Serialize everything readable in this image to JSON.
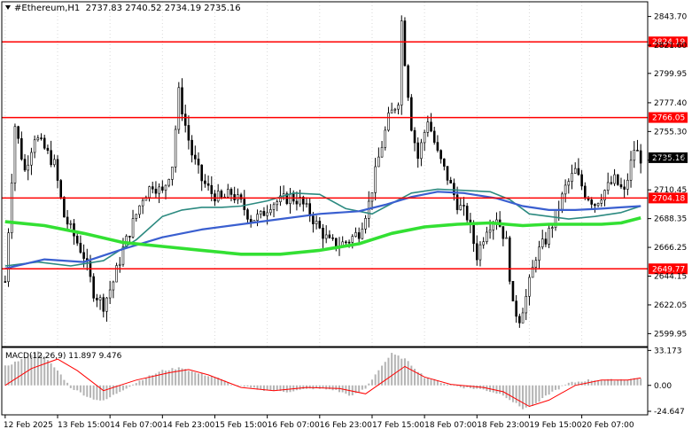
{
  "header": {
    "symbol": "#Ethereum,H1",
    "ohlc": "2737.83 2740.52 2734.19 2735.16"
  },
  "macd_label": "MACD(12,26,9) 11.897 9.476",
  "colors": {
    "candle": "#000000",
    "level_line": "#ff0000",
    "level_tag": "#ff0000",
    "price_tag": "#000000",
    "ma_fast": "#2c8a80",
    "ma_mid": "#3a5fd0",
    "ma_slow": "#33e033",
    "macd_hist": "#b4b4b4",
    "macd_signal": "#ff0000",
    "grid": "#d9d9d9"
  },
  "chart_data": [
    {
      "type": "candlestick",
      "symbol": "#Ethereum",
      "timeframe": "H1",
      "ylim": [
        2590,
        2855
      ],
      "y_ticks": [
        "2843.70",
        "2821.60",
        "2799.95",
        "2777.40",
        "2755.30",
        "2733.25",
        "2710.45",
        "2688.35",
        "2666.25",
        "2644.15",
        "2622.05",
        "2599.95"
      ],
      "x_ticks": [
        "12 Feb 2025",
        "13 Feb 15:00",
        "14 Feb 07:00",
        "14 Feb 23:00",
        "15 Feb 15:00",
        "16 Feb 07:00",
        "16 Feb 23:00",
        "17 Feb 15:00",
        "18 Feb 07:00",
        "18 Feb 23:00",
        "19 Feb 15:00",
        "20 Feb 07:00"
      ],
      "current_price": "2735.16",
      "levels": [
        {
          "value": 2824.19,
          "label": "2824.19"
        },
        {
          "value": 2766.05,
          "label": "2766.05"
        },
        {
          "value": 2704.18,
          "label": "2704.18"
        },
        {
          "value": 2649.77,
          "label": "2649.77"
        }
      ],
      "close_path": [
        [
          0,
          2640
        ],
        [
          3,
          2760
        ],
        [
          6,
          2725
        ],
        [
          9,
          2752
        ],
        [
          12,
          2742
        ],
        [
          15,
          2730
        ],
        [
          18,
          2690
        ],
        [
          21,
          2675
        ],
        [
          24,
          2660
        ],
        [
          27,
          2632
        ],
        [
          30,
          2622
        ],
        [
          33,
          2640
        ],
        [
          36,
          2665
        ],
        [
          39,
          2685
        ],
        [
          42,
          2705
        ],
        [
          45,
          2715
        ],
        [
          48,
          2708
        ],
        [
          51,
          2730
        ],
        [
          53,
          2785
        ],
        [
          55,
          2760
        ],
        [
          57,
          2738
        ],
        [
          60,
          2718
        ],
        [
          63,
          2708
        ],
        [
          66,
          2703
        ],
        [
          69,
          2708
        ],
        [
          72,
          2700
        ],
        [
          75,
          2688
        ],
        [
          78,
          2690
        ],
        [
          81,
          2700
        ],
        [
          84,
          2702
        ],
        [
          87,
          2705
        ],
        [
          90,
          2702
        ],
        [
          93,
          2692
        ],
        [
          96,
          2680
        ],
        [
          99,
          2670
        ],
        [
          102,
          2668
        ],
        [
          105,
          2672
        ],
        [
          108,
          2678
        ],
        [
          111,
          2700
        ],
        [
          114,
          2735
        ],
        [
          117,
          2765
        ],
        [
          120,
          2780
        ],
        [
          121,
          2840
        ],
        [
          122,
          2810
        ],
        [
          124,
          2760
        ],
        [
          126,
          2735
        ],
        [
          129,
          2765
        ],
        [
          132,
          2738
        ],
        [
          135,
          2720
        ],
        [
          138,
          2700
        ],
        [
          141,
          2690
        ],
        [
          144,
          2660
        ],
        [
          147,
          2682
        ],
        [
          150,
          2690
        ],
        [
          153,
          2670
        ],
        [
          155,
          2620
        ],
        [
          157,
          2612
        ],
        [
          159,
          2628
        ],
        [
          162,
          2660
        ],
        [
          165,
          2672
        ],
        [
          168,
          2690
        ],
        [
          171,
          2712
        ],
        [
          174,
          2725
        ],
        [
          177,
          2708
        ],
        [
          180,
          2700
        ],
        [
          183,
          2710
        ],
        [
          186,
          2718
        ],
        [
          189,
          2708
        ],
        [
          192,
          2742
        ],
        [
          194,
          2735
        ]
      ],
      "overlays": [
        {
          "name": "ma-fast",
          "points": [
            [
              0,
              2652
            ],
            [
              10,
              2655
            ],
            [
              20,
              2652
            ],
            [
              30,
              2656
            ],
            [
              40,
              2672
            ],
            [
              48,
              2690
            ],
            [
              54,
              2695
            ],
            [
              60,
              2697
            ],
            [
              66,
              2697
            ],
            [
              72,
              2698
            ],
            [
              80,
              2702
            ],
            [
              88,
              2708
            ],
            [
              96,
              2707
            ],
            [
              104,
              2696
            ],
            [
              112,
              2692
            ],
            [
              118,
              2700
            ],
            [
              124,
              2708
            ],
            [
              132,
              2711
            ],
            [
              140,
              2710
            ],
            [
              148,
              2709
            ],
            [
              154,
              2703
            ],
            [
              160,
              2692
            ],
            [
              166,
              2690
            ],
            [
              172,
              2688
            ],
            [
              180,
              2690
            ],
            [
              188,
              2693
            ],
            [
              194,
              2698
            ]
          ]
        },
        {
          "name": "ma-mid",
          "points": [
            [
              0,
              2650
            ],
            [
              12,
              2657
            ],
            [
              24,
              2655
            ],
            [
              36,
              2665
            ],
            [
              48,
              2674
            ],
            [
              60,
              2680
            ],
            [
              72,
              2684
            ],
            [
              84,
              2688
            ],
            [
              96,
              2692
            ],
            [
              108,
              2694
            ],
            [
              116,
              2699
            ],
            [
              124,
              2705
            ],
            [
              132,
              2709
            ],
            [
              140,
              2708
            ],
            [
              150,
              2704
            ],
            [
              158,
              2698
            ],
            [
              166,
              2695
            ],
            [
              174,
              2695
            ],
            [
              182,
              2696
            ],
            [
              188,
              2697
            ],
            [
              194,
              2698
            ]
          ]
        },
        {
          "name": "ma-slow",
          "points": [
            [
              0,
              2686
            ],
            [
              12,
              2683
            ],
            [
              24,
              2677
            ],
            [
              36,
              2670
            ],
            [
              48,
              2667
            ],
            [
              60,
              2664
            ],
            [
              72,
              2661
            ],
            [
              84,
              2661
            ],
            [
              96,
              2664
            ],
            [
              108,
              2669
            ],
            [
              118,
              2677
            ],
            [
              128,
              2682
            ],
            [
              138,
              2684
            ],
            [
              148,
              2685
            ],
            [
              158,
              2683
            ],
            [
              166,
              2684
            ],
            [
              174,
              2684
            ],
            [
              182,
              2684
            ],
            [
              188,
              2685
            ],
            [
              194,
              2689
            ]
          ]
        }
      ]
    },
    {
      "type": "histogram",
      "name": "MACD(12,26,9)",
      "main": "11.897",
      "signal": "9.476",
      "ylim": [
        -28,
        36
      ],
      "y_ticks": [
        "33.173",
        "0.00",
        "-24.647"
      ],
      "signal_path": [
        [
          0,
          0
        ],
        [
          8,
          16
        ],
        [
          16,
          25
        ],
        [
          22,
          14
        ],
        [
          30,
          -5
        ],
        [
          40,
          5
        ],
        [
          50,
          12
        ],
        [
          56,
          15
        ],
        [
          62,
          10
        ],
        [
          72,
          -2
        ],
        [
          82,
          -5
        ],
        [
          92,
          -2
        ],
        [
          102,
          -3
        ],
        [
          110,
          -8
        ],
        [
          116,
          5
        ],
        [
          122,
          18
        ],
        [
          128,
          8
        ],
        [
          136,
          1
        ],
        [
          146,
          -2
        ],
        [
          152,
          -6
        ],
        [
          160,
          -20
        ],
        [
          166,
          -14
        ],
        [
          174,
          0
        ],
        [
          182,
          5
        ],
        [
          190,
          5
        ],
        [
          194,
          7
        ]
      ],
      "hist_path": [
        [
          0,
          18
        ],
        [
          6,
          26
        ],
        [
          10,
          33
        ],
        [
          16,
          14
        ],
        [
          20,
          -2
        ],
        [
          26,
          -12
        ],
        [
          30,
          -15
        ],
        [
          36,
          -4
        ],
        [
          42,
          6
        ],
        [
          48,
          14
        ],
        [
          54,
          17
        ],
        [
          58,
          12
        ],
        [
          64,
          8
        ],
        [
          70,
          0
        ],
        [
          78,
          -4
        ],
        [
          86,
          -6
        ],
        [
          94,
          -3
        ],
        [
          100,
          -4
        ],
        [
          106,
          -10
        ],
        [
          110,
          -3
        ],
        [
          114,
          15
        ],
        [
          118,
          30
        ],
        [
          122,
          25
        ],
        [
          128,
          8
        ],
        [
          134,
          2
        ],
        [
          140,
          -2
        ],
        [
          146,
          -4
        ],
        [
          152,
          -9
        ],
        [
          158,
          -22
        ],
        [
          162,
          -18
        ],
        [
          166,
          -8
        ],
        [
          172,
          2
        ],
        [
          178,
          5
        ],
        [
          184,
          5
        ],
        [
          190,
          6
        ],
        [
          194,
          7
        ]
      ]
    }
  ]
}
